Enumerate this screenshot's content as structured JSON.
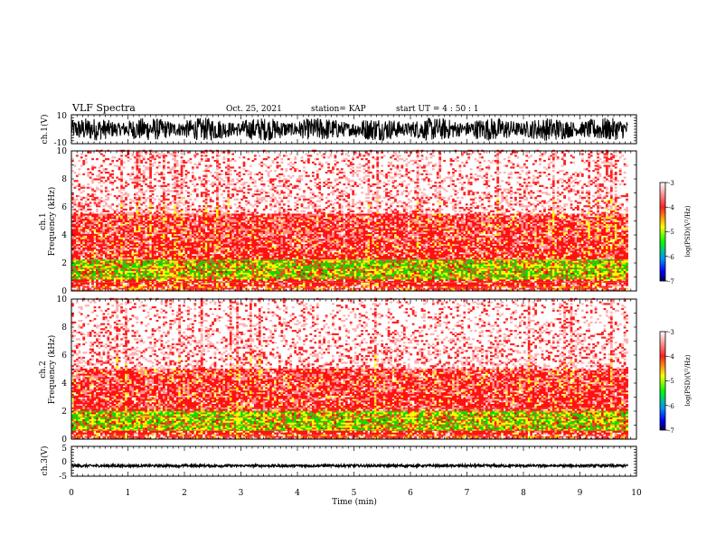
{
  "header": {
    "title": "VLF Spectra",
    "date": "Oct. 25, 2021",
    "station": "station= KAP",
    "start_ut": "start  UT =   4 : 50 : 1"
  },
  "colors": {
    "spectrogram_scale": [
      "#ffffff",
      "#ff8080",
      "#ff0000",
      "#ffff00",
      "#00ff00",
      "#00a0ff",
      "#0000ff",
      "#000060"
    ],
    "waveform": "#000000"
  },
  "chart_data": [
    {
      "type": "line",
      "panel": "ch1-waveform",
      "ylabel": "ch.1(V)",
      "ylim": [
        -10,
        10
      ],
      "y_ticks": [
        "10",
        "-10"
      ],
      "xlim": [
        0,
        10
      ],
      "x_end_data": 9.85,
      "description_values": {
        "mean": 0,
        "amplitude_range": [
          -8,
          8
        ]
      }
    },
    {
      "type": "heatmap",
      "panel": "ch1-spectrogram",
      "ylabel": "ch.1\nFrequency (kHz)",
      "ylabel_line1": "ch.1",
      "ylabel_line2": "Frequency  (kHz)",
      "ylim": [
        0,
        10
      ],
      "y_ticks": [
        "0",
        "2",
        "4",
        "6",
        "8",
        "10"
      ],
      "xlim": [
        0,
        10
      ],
      "x_end_data": 9.85,
      "colorbar": {
        "label": "log(PSD)(V²/Hz)",
        "range": [
          -7,
          -3
        ],
        "ticks": [
          "-3",
          "-4",
          "-5",
          "-6",
          "-7"
        ]
      },
      "energy_band_top_khz": 5.5,
      "intense_band_khz": [
        0.8,
        2.2
      ]
    },
    {
      "type": "heatmap",
      "panel": "ch2-spectrogram",
      "ylabel_line1": "ch.2",
      "ylabel_line2": "Frequency  (kHz)",
      "ylim": [
        0,
        10
      ],
      "y_ticks": [
        "0",
        "2",
        "4",
        "6",
        "8",
        "10"
      ],
      "xlim": [
        0,
        10
      ],
      "x_end_data": 9.85,
      "colorbar": {
        "label": "log(PSD)(V²/Hz)",
        "range": [
          -7,
          -3
        ],
        "ticks": [
          "-3",
          "-4",
          "-5",
          "-6",
          "-7"
        ]
      },
      "energy_band_top_khz": 5.0,
      "intense_band_khz": [
        0.5,
        2.0
      ]
    },
    {
      "type": "line",
      "panel": "ch3-waveform",
      "ylabel": "ch.3(V)",
      "ylim": [
        -5,
        5
      ],
      "y_ticks": [
        "5",
        "0",
        "-5"
      ],
      "xlim": [
        0,
        10
      ],
      "x_end_data": 9.85,
      "xlabel": "Time  (min)",
      "x_ticks": [
        "0",
        "1",
        "2",
        "3",
        "4",
        "5",
        "6",
        "7",
        "8",
        "9",
        "10"
      ],
      "description_values": {
        "mean": -1.5,
        "amplitude": 0.4
      }
    }
  ]
}
